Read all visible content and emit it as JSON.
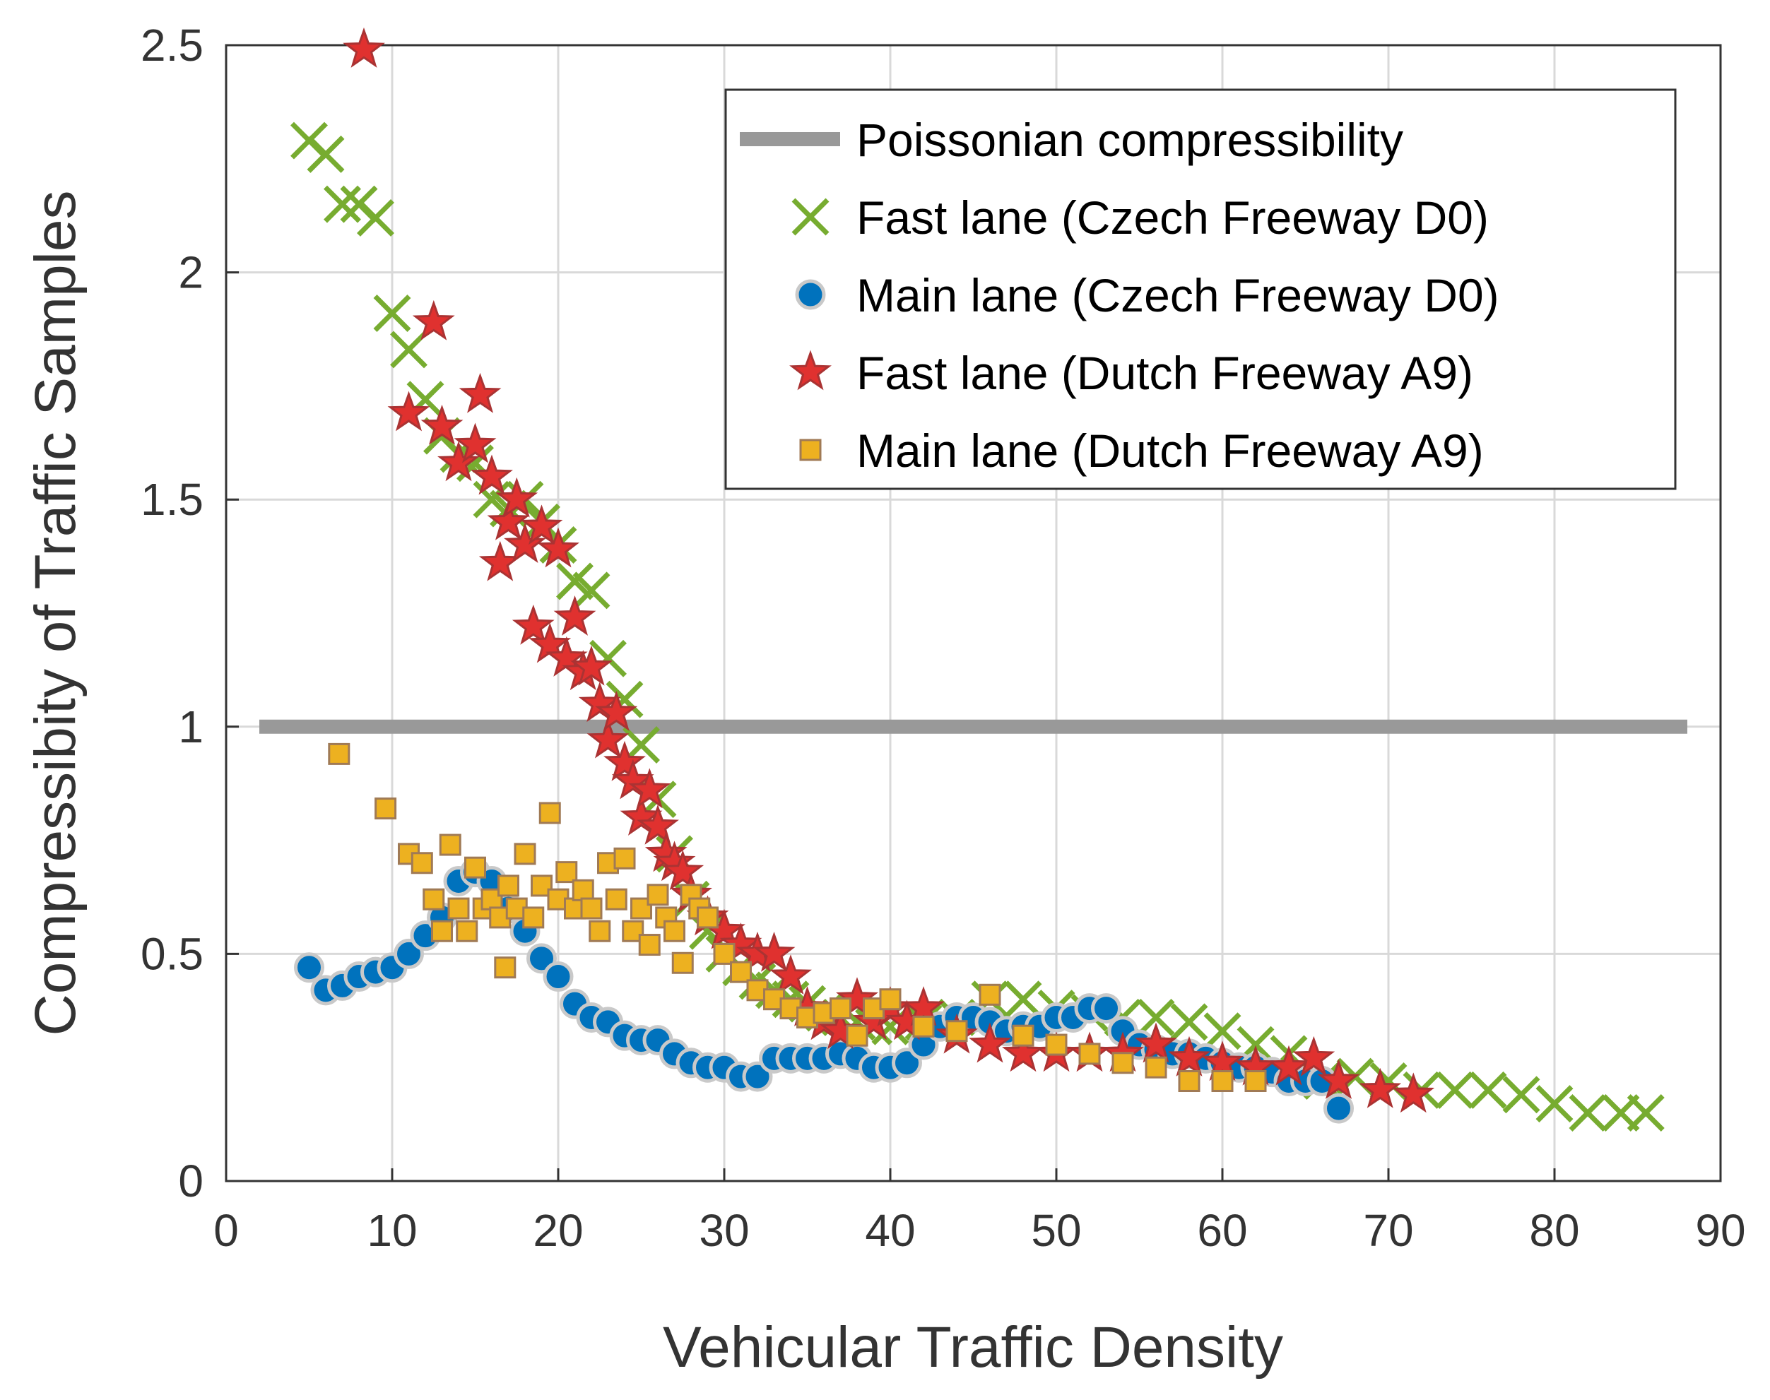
{
  "chart_data": {
    "type": "scatter",
    "title": "",
    "xlabel": "Vehicular Traffic Density",
    "ylabel": "Compressibity of Traffic Samples",
    "xlim": [
      0,
      90
    ],
    "ylim": [
      0,
      2.5
    ],
    "xticks": [
      "0",
      "10",
      "20",
      "30",
      "40",
      "50",
      "60",
      "70",
      "80",
      "90"
    ],
    "yticks": [
      "0",
      "0.5",
      "1",
      "1.5",
      "2",
      "2.5"
    ],
    "grid": true,
    "legend_position": "top-right",
    "colors": {
      "poisson": "#999999",
      "czech_fast": "#77ac30",
      "czech_main": "#0072bd",
      "dutch_fast": "#e0312f",
      "dutch_main": "#edb120"
    },
    "series": [
      {
        "name": "Poissonian compressibility",
        "marker": "line",
        "color": "#999999",
        "x": [
          2,
          88
        ],
        "y": [
          1,
          1
        ]
      },
      {
        "name": "Fast lane (Czech Freeway D0)",
        "marker": "x",
        "color": "#77ac30",
        "x": [
          5,
          6,
          7,
          8,
          9,
          10,
          11,
          12,
          13,
          14,
          15,
          16,
          17,
          18,
          19,
          20,
          21,
          22,
          23,
          24,
          25,
          26,
          27,
          28,
          29,
          30,
          31,
          32,
          33,
          34,
          35,
          36,
          37,
          38,
          39,
          40,
          42,
          44,
          46,
          48,
          50,
          52,
          54,
          56,
          58,
          60,
          62,
          64,
          66,
          68,
          70,
          72,
          74,
          76,
          78,
          80,
          82,
          84,
          85.5
        ],
        "y": [
          2.29,
          2.26,
          2.15,
          2.15,
          2.12,
          1.91,
          1.83,
          1.72,
          1.64,
          1.6,
          1.58,
          1.5,
          1.48,
          1.5,
          1.45,
          1.4,
          1.32,
          1.3,
          1.15,
          1.06,
          0.96,
          0.84,
          0.72,
          0.62,
          0.55,
          0.5,
          0.47,
          0.44,
          0.42,
          0.4,
          0.39,
          0.37,
          0.36,
          0.35,
          0.34,
          0.34,
          0.35,
          0.36,
          0.4,
          0.4,
          0.38,
          0.37,
          0.36,
          0.36,
          0.35,
          0.33,
          0.3,
          0.28,
          0.22,
          0.23,
          0.22,
          0.2,
          0.2,
          0.2,
          0.19,
          0.17,
          0.15,
          0.15,
          0.15
        ]
      },
      {
        "name": "Main lane (Czech Freeway D0)",
        "marker": "circle",
        "color": "#0072bd",
        "x": [
          5,
          6,
          7,
          8,
          9,
          10,
          11,
          12,
          13,
          14,
          15,
          16,
          17,
          18,
          19,
          20,
          21,
          22,
          23,
          24,
          25,
          26,
          27,
          28,
          29,
          30,
          31,
          32,
          33,
          34,
          35,
          36,
          37,
          38,
          39,
          40,
          41,
          42,
          43,
          44,
          45,
          46,
          47,
          48,
          49,
          50,
          51,
          52,
          53,
          54,
          55,
          56,
          57,
          58,
          59,
          60,
          61,
          62,
          63,
          64,
          65,
          66,
          67
        ],
        "y": [
          0.47,
          0.42,
          0.43,
          0.45,
          0.46,
          0.47,
          0.5,
          0.54,
          0.58,
          0.66,
          0.68,
          0.66,
          0.6,
          0.55,
          0.49,
          0.45,
          0.39,
          0.36,
          0.35,
          0.32,
          0.31,
          0.31,
          0.28,
          0.26,
          0.25,
          0.25,
          0.23,
          0.23,
          0.27,
          0.27,
          0.27,
          0.27,
          0.28,
          0.27,
          0.25,
          0.25,
          0.26,
          0.3,
          0.34,
          0.36,
          0.36,
          0.35,
          0.33,
          0.34,
          0.34,
          0.36,
          0.36,
          0.38,
          0.38,
          0.33,
          0.3,
          0.29,
          0.28,
          0.28,
          0.27,
          0.26,
          0.25,
          0.25,
          0.24,
          0.22,
          0.22,
          0.22,
          0.16
        ]
      },
      {
        "name": "Fast lane (Dutch Freeway A9)",
        "marker": "star",
        "color": "#e0312f",
        "x": [
          8.3,
          11,
          12.5,
          13,
          14,
          15,
          15.3,
          16,
          16.5,
          17,
          17.5,
          18,
          18.5,
          19,
          19.5,
          20,
          20.5,
          21,
          21.5,
          22,
          22.5,
          23,
          23.5,
          24,
          24.5,
          25,
          25.5,
          26,
          26.5,
          27,
          27.5,
          28,
          29,
          30,
          31,
          32,
          33,
          34,
          35,
          36,
          37,
          38,
          39,
          40,
          41,
          42,
          44,
          46,
          48,
          50,
          52,
          54,
          56,
          58,
          60,
          62,
          64,
          65.5,
          67,
          69.5,
          71.5
        ],
        "y": [
          2.49,
          1.69,
          1.89,
          1.66,
          1.58,
          1.62,
          1.73,
          1.55,
          1.36,
          1.45,
          1.5,
          1.4,
          1.22,
          1.44,
          1.18,
          1.39,
          1.15,
          1.24,
          1.12,
          1.13,
          1.05,
          0.97,
          1.03,
          0.92,
          0.88,
          0.8,
          0.86,
          0.78,
          0.72,
          0.7,
          0.68,
          0.63,
          0.58,
          0.55,
          0.52,
          0.5,
          0.5,
          0.45,
          0.38,
          0.35,
          0.33,
          0.4,
          0.35,
          0.38,
          0.35,
          0.38,
          0.32,
          0.3,
          0.28,
          0.28,
          0.28,
          0.28,
          0.3,
          0.27,
          0.26,
          0.25,
          0.25,
          0.27,
          0.22,
          0.2,
          0.19
        ]
      },
      {
        "name": "Main lane (Dutch Freeway A9)",
        "marker": "square",
        "color": "#edb120",
        "x": [
          6.8,
          9.6,
          11,
          11.8,
          12.5,
          13,
          13.5,
          14,
          14.5,
          15,
          15.5,
          16,
          16.5,
          16.8,
          17,
          17.5,
          18,
          18.5,
          19,
          19.5,
          20,
          20.5,
          21,
          21.5,
          22,
          22.5,
          23,
          23.5,
          24,
          24.5,
          25,
          25.5,
          26,
          26.5,
          27,
          27.5,
          28,
          28.5,
          29,
          30,
          31,
          32,
          33,
          34,
          35,
          36,
          37,
          38,
          39,
          40,
          42,
          44,
          46,
          48,
          50,
          52,
          54,
          56,
          58,
          60,
          62
        ],
        "y": [
          0.94,
          0.82,
          0.72,
          0.7,
          0.62,
          0.55,
          0.74,
          0.6,
          0.55,
          0.69,
          0.6,
          0.62,
          0.58,
          0.47,
          0.65,
          0.6,
          0.72,
          0.58,
          0.65,
          0.81,
          0.62,
          0.68,
          0.6,
          0.64,
          0.6,
          0.55,
          0.7,
          0.62,
          0.71,
          0.55,
          0.6,
          0.52,
          0.63,
          0.58,
          0.55,
          0.48,
          0.63,
          0.6,
          0.58,
          0.5,
          0.46,
          0.42,
          0.4,
          0.38,
          0.36,
          0.37,
          0.38,
          0.32,
          0.38,
          0.4,
          0.34,
          0.33,
          0.41,
          0.32,
          0.3,
          0.28,
          0.26,
          0.25,
          0.22,
          0.22,
          0.22
        ]
      }
    ]
  }
}
